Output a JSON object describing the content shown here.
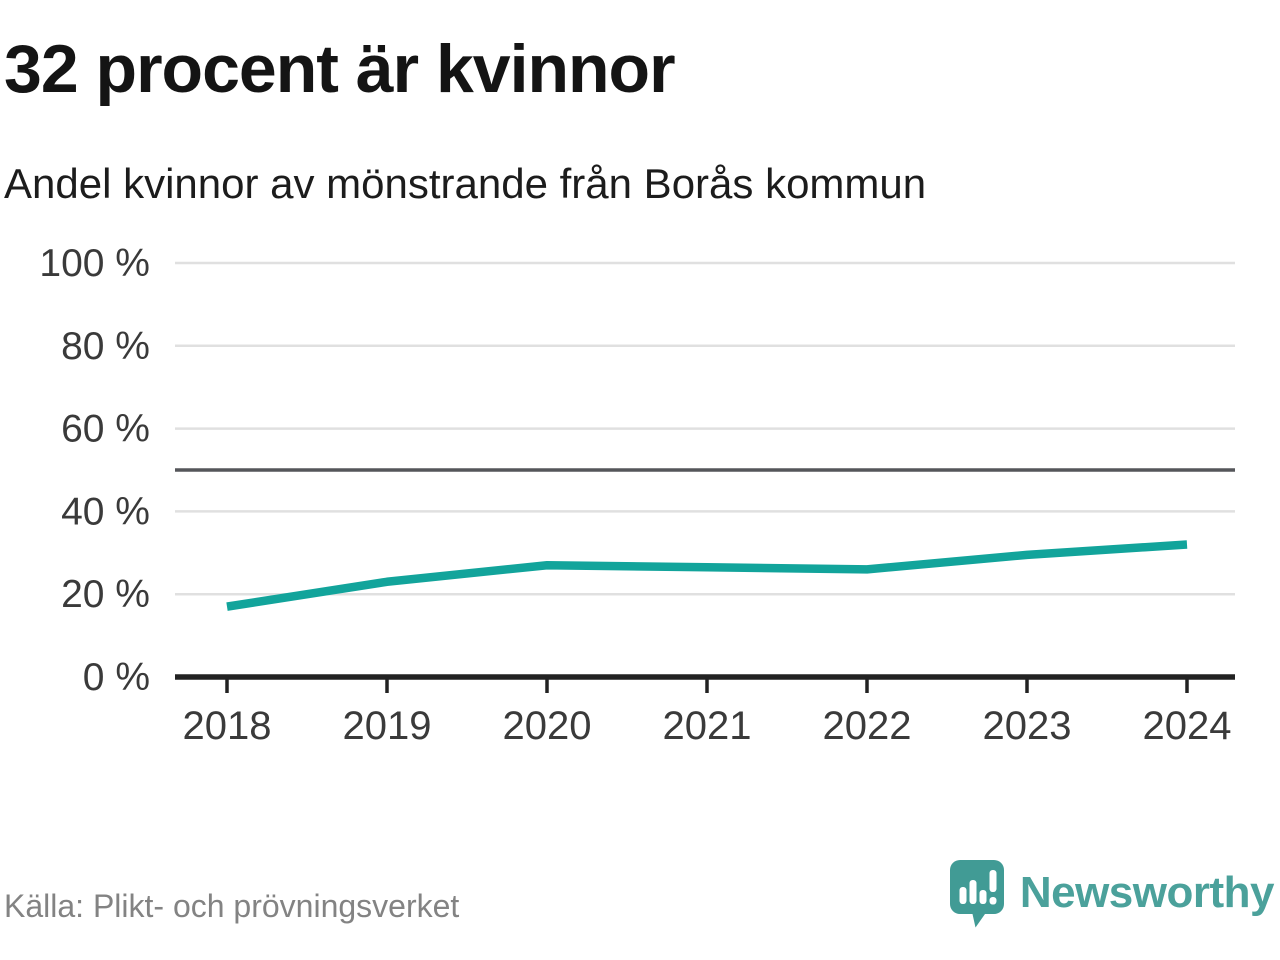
{
  "header": {
    "title": "32 procent är kvinnor",
    "subtitle": "Andel kvinnor av mönstrande från Borås kommun"
  },
  "footer": {
    "source": "Källa: Plikt- och prövningsverket",
    "brand_name": "Newsworthy",
    "brand_icon": "speech-bubble-bar-chart-icon"
  },
  "colors": {
    "line": "#12a49b",
    "grid": "#e0e0e0",
    "reference": "#55565a",
    "axis": "#222222",
    "tick_text": "#3a3a3a",
    "muted_text": "#838383",
    "brand": "#4ba19b",
    "brand_icon_fill": "#419b95"
  },
  "chart_data": {
    "type": "line",
    "title": "32 procent är kvinnor",
    "subtitle": "Andel kvinnor av mönstrande från Borås kommun",
    "x": [
      2018,
      2019,
      2020,
      2021,
      2022,
      2023,
      2024
    ],
    "series": [
      {
        "name": "Andel kvinnor av mönstrande",
        "values": [
          17,
          23,
          27,
          26.5,
          26,
          29.5,
          32
        ]
      }
    ],
    "xlabel": "",
    "ylabel": "",
    "ylim": [
      0,
      100
    ],
    "yticks": [
      0,
      20,
      40,
      60,
      80,
      100
    ],
    "ytick_format": "{v} %",
    "reference_line": 50,
    "grid": true,
    "legend": false,
    "unit": "%"
  }
}
